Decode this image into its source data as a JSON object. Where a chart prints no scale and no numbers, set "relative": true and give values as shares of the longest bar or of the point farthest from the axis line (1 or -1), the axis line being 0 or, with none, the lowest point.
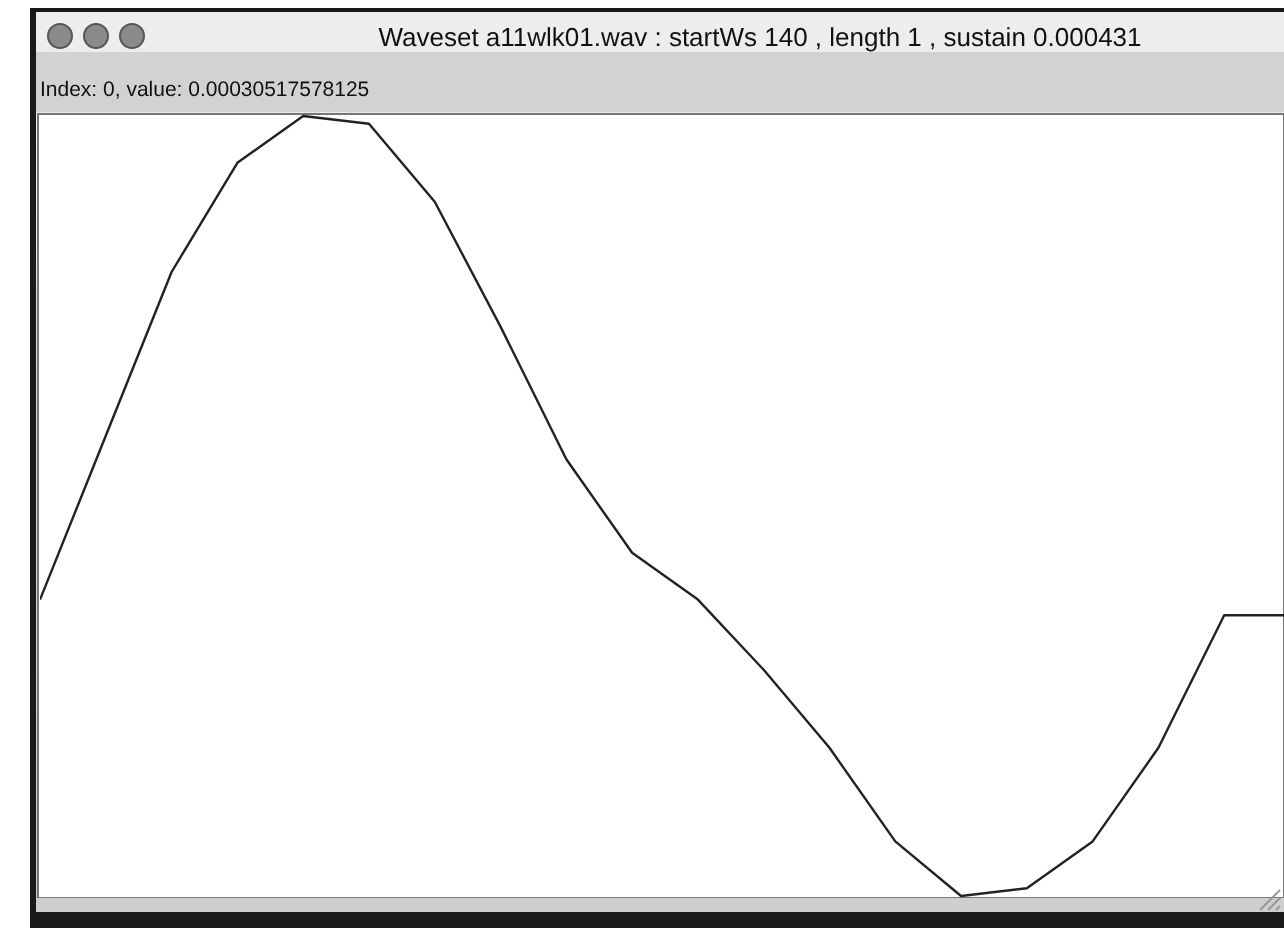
{
  "chart_data": {
    "type": "line",
    "title": "Waveset a11wlk01.wav : startWs 140 , length 1 , sustain 0.000431",
    "subtitle": "Index: 0, value: 0.00030517578125",
    "relative": true,
    "categories": [
      null,
      null,
      null,
      null,
      null,
      null,
      null,
      null,
      null,
      null,
      null,
      null,
      null,
      null,
      null,
      null,
      null,
      null,
      null,
      null
    ],
    "series": [
      {
        "color": "#222222",
        "values": [
          0.38,
          0.59,
          0.8,
          0.94,
          1,
          0.99,
          0.89,
          0.73,
          0.56,
          0.44,
          0.38,
          0.29,
          0.19,
          0.07,
          0,
          0.01,
          0.07,
          0.19,
          0.36,
          0.36
        ]
      }
    ]
  }
}
